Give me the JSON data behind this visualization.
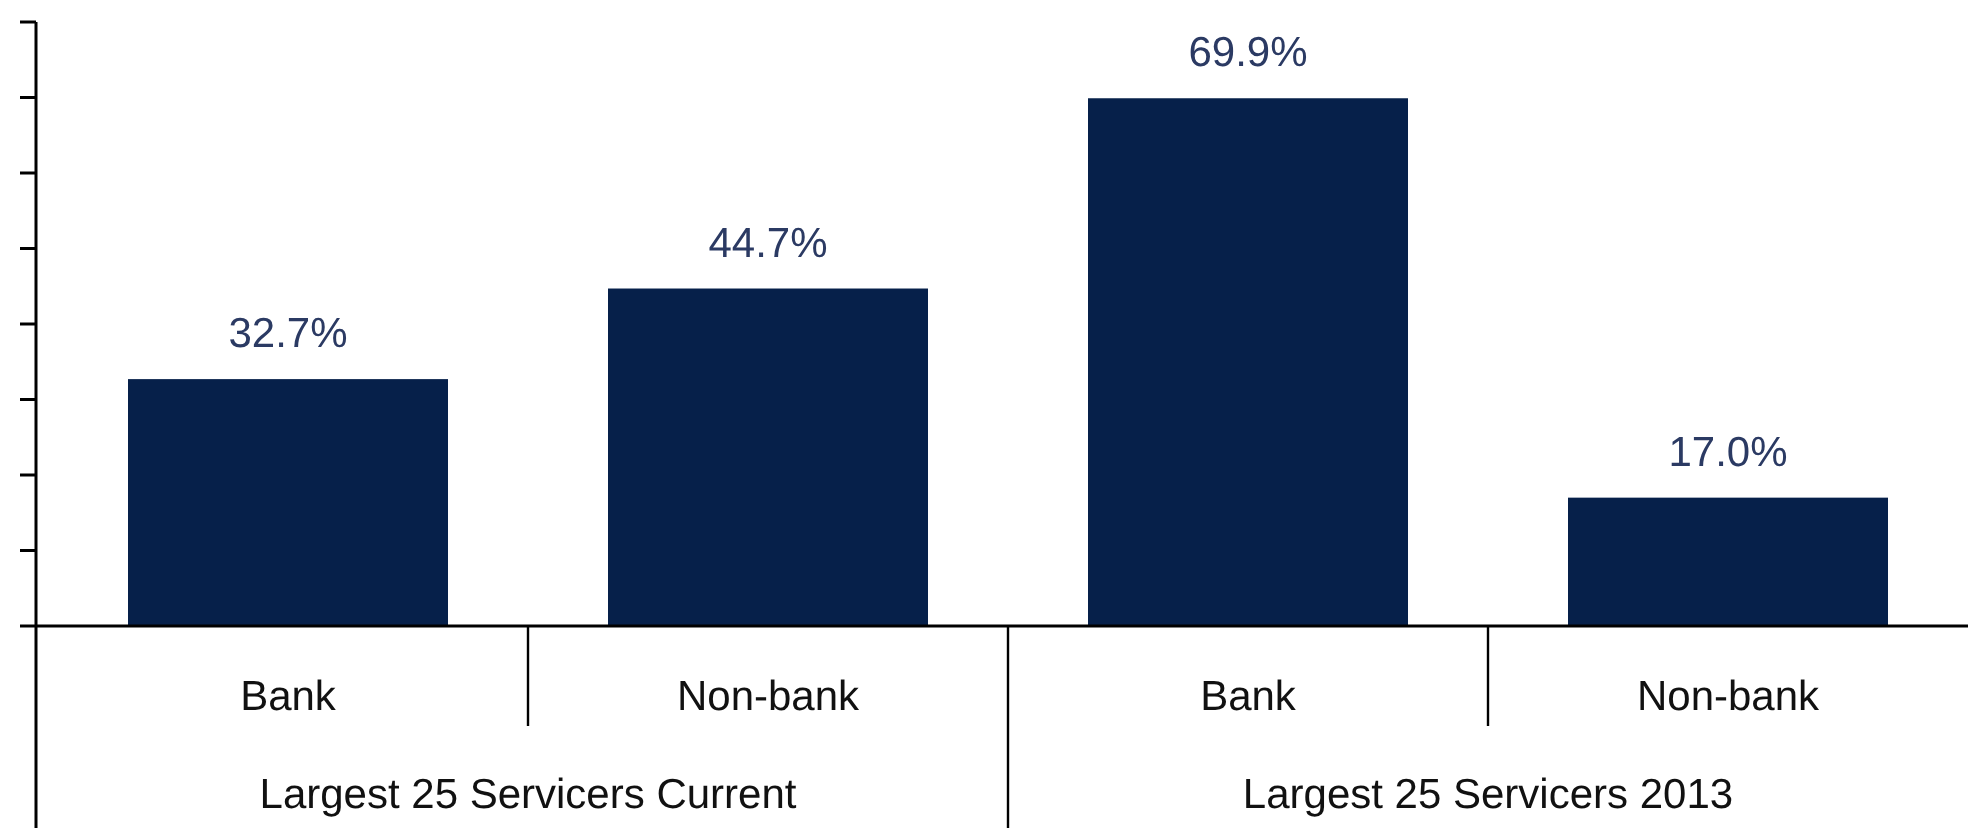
{
  "chart_data": {
    "type": "bar",
    "categories": [
      "Bank",
      "Non-bank",
      "Bank",
      "Non-bank"
    ],
    "values": [
      32.7,
      44.7,
      69.9,
      17.0
    ],
    "value_labels": [
      "32.7%",
      "44.7%",
      "69.9%",
      "17.0%"
    ],
    "color": "#06204a",
    "ylim": [
      0,
      80
    ],
    "yticks": [
      {
        "value": 0,
        "label": null
      },
      {
        "value": 10,
        "label": null
      },
      {
        "value": 20,
        "label": null
      },
      {
        "value": 30,
        "label": null
      },
      {
        "value": 40,
        "label": null
      },
      {
        "value": 50,
        "label": null
      },
      {
        "value": 60,
        "label": null
      },
      {
        "value": 70,
        "label": null
      },
      {
        "value": 80,
        "label": null
      }
    ],
    "tick_labels": "x",
    "grid": false,
    "annotations": [
      "Largest 25 Servicers Current",
      "Largest 25 Servicers 2013"
    ]
  }
}
